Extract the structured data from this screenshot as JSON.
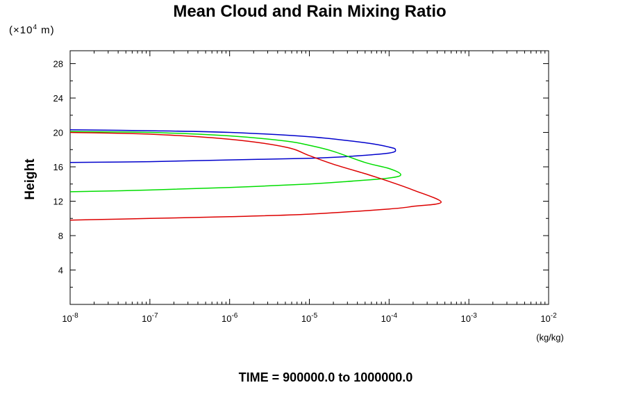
{
  "chart_data": {
    "type": "line",
    "title": "Mean Cloud and Rain Mixing Ratio",
    "ylabel": "Height",
    "xunit": "(kg/kg)",
    "yscale_prefix": "(×10",
    "yscale_exp": "4",
    "yscale_suffix": " m)",
    "footer": "TIME = 900000.0 to 1000000.0",
    "xscale": "log",
    "xlim": [
      1e-08,
      0.01
    ],
    "ylim": [
      0,
      29.5
    ],
    "grid": false,
    "x_ticks": [
      {
        "base": "10",
        "exp": "-8",
        "value": 1e-08
      },
      {
        "base": "10",
        "exp": "-7",
        "value": 1e-07
      },
      {
        "base": "10",
        "exp": "-6",
        "value": 1e-06
      },
      {
        "base": "10",
        "exp": "-5",
        "value": 1e-05
      },
      {
        "base": "10",
        "exp": "-4",
        "value": 0.0001
      },
      {
        "base": "10",
        "exp": "-3",
        "value": 0.001
      },
      {
        "base": "10",
        "exp": "-2",
        "value": 0.01
      }
    ],
    "y_ticks": [
      4,
      8,
      12,
      16,
      20,
      24,
      28
    ],
    "series": [
      {
        "color": "#0000cc",
        "points": [
          [
            1e-08,
            20.3
          ],
          [
            1e-07,
            20.2
          ],
          [
            1e-06,
            20.0
          ],
          [
            1e-05,
            19.5
          ],
          [
            5e-05,
            18.8
          ],
          [
            0.0001,
            18.3
          ],
          [
            0.00012,
            18.0
          ],
          [
            0.0001,
            17.6
          ],
          [
            3e-05,
            17.2
          ],
          [
            1e-05,
            17.0
          ],
          [
            1e-06,
            16.8
          ],
          [
            1e-07,
            16.6
          ],
          [
            1e-08,
            16.5
          ]
        ]
      },
      {
        "color": "#00dd00",
        "points": [
          [
            1e-08,
            20.1
          ],
          [
            1e-07,
            20.0
          ],
          [
            1e-06,
            19.6
          ],
          [
            5e-06,
            19.0
          ],
          [
            1e-05,
            18.5
          ],
          [
            2e-05,
            17.8
          ],
          [
            5e-05,
            16.5
          ],
          [
            0.0001,
            15.8
          ],
          [
            0.00014,
            15.1
          ],
          [
            0.0001,
            14.7
          ],
          [
            3e-05,
            14.3
          ],
          [
            1e-05,
            14.0
          ],
          [
            1e-06,
            13.6
          ],
          [
            1e-07,
            13.3
          ],
          [
            1e-08,
            13.1
          ]
        ]
      },
      {
        "color": "#dd0000",
        "points": [
          [
            1e-08,
            20.0
          ],
          [
            1e-07,
            19.8
          ],
          [
            1e-06,
            19.2
          ],
          [
            5e-06,
            18.3
          ],
          [
            1e-05,
            17.3
          ],
          [
            2e-05,
            16.3
          ],
          [
            5e-05,
            15.2
          ],
          [
            0.0001,
            14.3
          ],
          [
            0.0002,
            13.3
          ],
          [
            0.00045,
            11.9
          ],
          [
            0.0002,
            11.4
          ],
          [
            0.0001,
            11.1
          ],
          [
            1e-05,
            10.5
          ],
          [
            1e-06,
            10.2
          ],
          [
            1e-07,
            10.0
          ],
          [
            1e-08,
            9.8
          ]
        ]
      }
    ]
  }
}
